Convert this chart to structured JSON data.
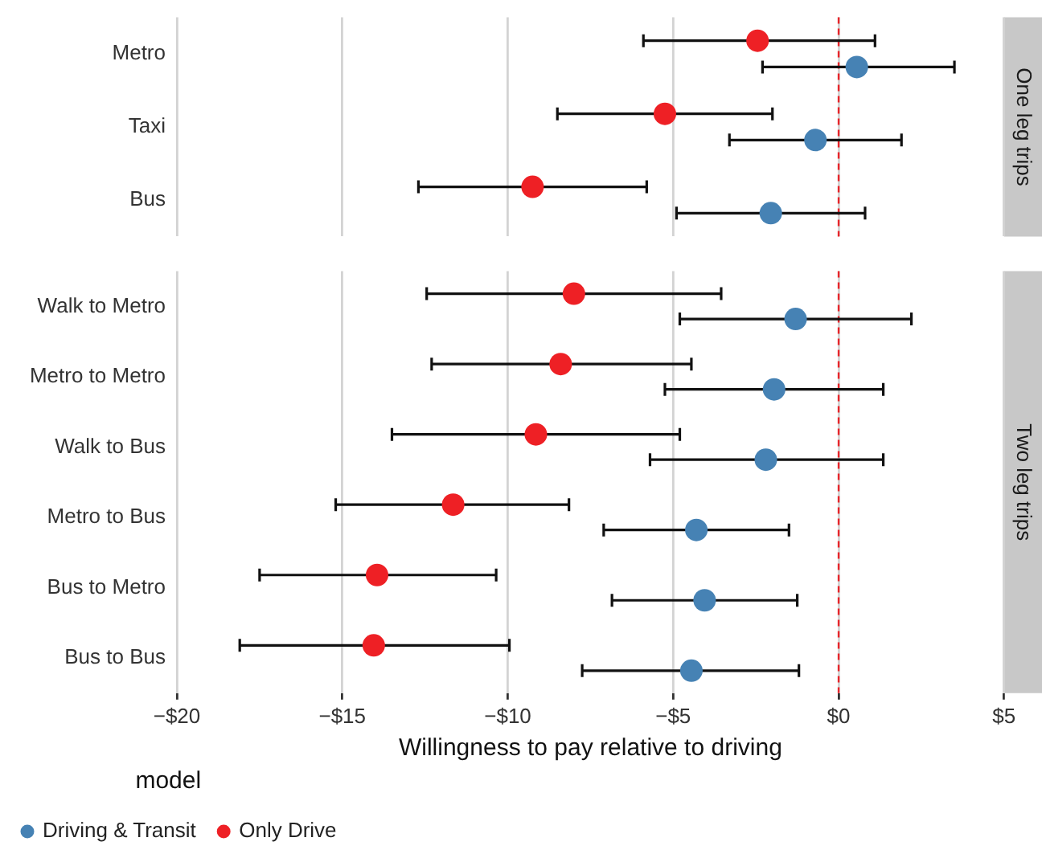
{
  "chart_data": [
    {
      "type": "scatter",
      "orientation": "horizontal",
      "title": "One leg trips",
      "categories": [
        "Metro",
        "Taxi",
        "Bus"
      ],
      "series": [
        {
          "color": "#4682b4",
          "values": [
            0.55,
            -0.7,
            -2.05
          ],
          "errors": [
            [
              -2.3,
              3.5
            ],
            [
              -3.3,
              1.9
            ],
            [
              -4.9,
              0.8
            ]
          ]
        },
        {
          "color": "#ee2025",
          "values": [
            -2.45,
            -5.25,
            -9.25
          ],
          "errors": [
            [
              -5.9,
              1.1
            ],
            [
              -8.5,
              -2.0
            ],
            [
              -12.7,
              -5.8
            ]
          ]
        }
      ],
      "xlim": [
        -20,
        5
      ],
      "xticks": [
        -20,
        -15,
        -10,
        -5,
        0,
        5
      ],
      "ref_lines": [
        {
          "axis": "x",
          "value": 0,
          "label": null,
          "color": "#e8262b",
          "line_style": "dashed"
        }
      ],
      "grid": "x",
      "marker": "circle",
      "tick_labels": "y",
      "legend": false
    },
    {
      "type": "scatter",
      "orientation": "horizontal",
      "title": "Two leg trips",
      "xlabel": "Willingness to pay relative to driving",
      "legend_title": "model",
      "categories": [
        "Walk to Metro",
        "Metro to Metro",
        "Walk to Bus",
        "Metro to Bus",
        "Bus to Metro",
        "Bus to Bus"
      ],
      "series": [
        {
          "name": "Driving & Transit",
          "color": "#4682b4",
          "values": [
            -1.3,
            -1.95,
            -2.2,
            -4.3,
            -4.05,
            -4.45
          ],
          "errors": [
            [
              -4.8,
              2.2
            ],
            [
              -5.25,
              1.35
            ],
            [
              -5.7,
              1.35
            ],
            [
              -7.1,
              -1.5
            ],
            [
              -6.85,
              -1.25
            ],
            [
              -7.75,
              -1.2
            ]
          ]
        },
        {
          "name": "Only Drive",
          "color": "#ee2025",
          "values": [
            -8.0,
            -8.4,
            -9.15,
            -11.65,
            -13.95,
            -14.05
          ],
          "errors": [
            [
              -12.45,
              -3.55
            ],
            [
              -12.3,
              -4.45
            ],
            [
              -13.5,
              -4.8
            ],
            [
              -15.2,
              -8.15
            ],
            [
              -17.5,
              -10.35
            ],
            [
              -18.1,
              -9.95
            ]
          ]
        }
      ],
      "xlim": [
        -20,
        5
      ],
      "xticks": [
        {
          "value": -20,
          "label": "−$20"
        },
        {
          "value": -15,
          "label": "−$15"
        },
        {
          "value": -10,
          "label": "−$10"
        },
        {
          "value": -5,
          "label": "−$5"
        },
        {
          "value": 0,
          "label": "$0"
        },
        {
          "value": 5,
          "label": "$5"
        }
      ],
      "ref_lines": [
        {
          "axis": "x",
          "value": 0,
          "label": null,
          "color": "#e8262b",
          "line_style": "dashed"
        }
      ],
      "grid": "x",
      "marker": "circle",
      "legend": "bottom"
    }
  ]
}
